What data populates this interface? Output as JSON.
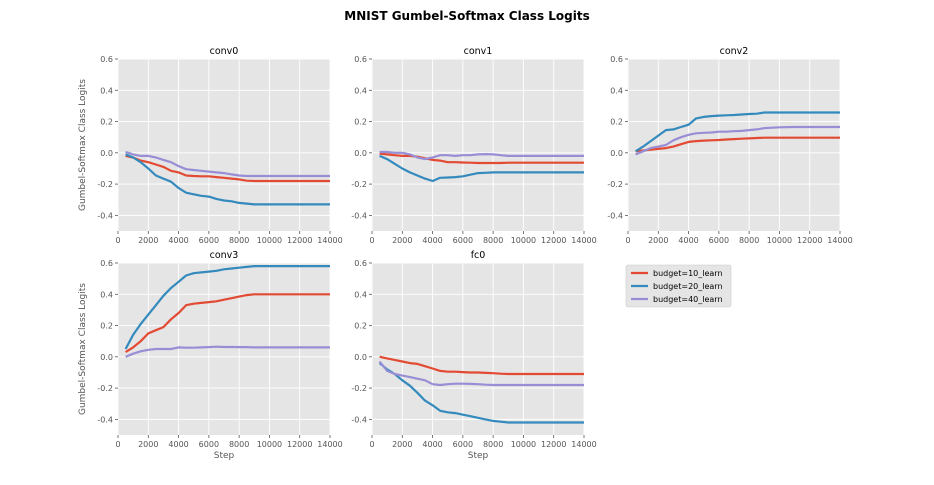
{
  "chart_data": {
    "type": "line",
    "title": "MNIST Gumbel-Softmax Class Logits",
    "xlabel": "Step",
    "ylabel": "Gumbel-Softmax Class Logits",
    "xlim": [
      0,
      14000
    ],
    "ylim": [
      -0.5,
      0.6
    ],
    "xticks": [
      "0",
      "2000",
      "4000",
      "6000",
      "8000",
      "10000",
      "12000",
      "14000"
    ],
    "yticks": [
      "-0.4",
      "-0.2",
      "0.0",
      "0.2",
      "0.4",
      "0.6"
    ],
    "legend": {
      "placement": "center-right",
      "entries": [
        "budget=10_learn",
        "budget=20_learn",
        "budget=40_learn"
      ]
    },
    "colors": [
      "#E24A33",
      "#348ABD",
      "#988ED5"
    ],
    "x": [
      500,
      1000,
      1500,
      2000,
      2500,
      3000,
      3500,
      4000,
      4500,
      5000,
      5500,
      6000,
      6500,
      7000,
      7500,
      8000,
      8500,
      9000,
      10000,
      11000,
      12000,
      13000,
      14000
    ],
    "panels": [
      {
        "name": "conv0",
        "series": [
          {
            "name": "budget=10_learn",
            "values": [
              -0.02,
              -0.03,
              -0.05,
              -0.06,
              -0.075,
              -0.09,
              -0.115,
              -0.125,
              -0.145,
              -0.148,
              -0.15,
              -0.15,
              -0.155,
              -0.16,
              -0.165,
              -0.17,
              -0.178,
              -0.18,
              -0.18,
              -0.18,
              -0.18,
              -0.18,
              -0.18
            ]
          },
          {
            "name": "budget=20_learn",
            "values": [
              -0.01,
              -0.03,
              -0.06,
              -0.1,
              -0.145,
              -0.165,
              -0.185,
              -0.225,
              -0.255,
              -0.265,
              -0.275,
              -0.28,
              -0.295,
              -0.305,
              -0.31,
              -0.32,
              -0.325,
              -0.33,
              -0.33,
              -0.33,
              -0.33,
              -0.33,
              -0.33
            ]
          },
          {
            "name": "budget=40_learn",
            "values": [
              0.005,
              -0.01,
              -0.02,
              -0.02,
              -0.03,
              -0.045,
              -0.06,
              -0.085,
              -0.105,
              -0.11,
              -0.115,
              -0.12,
              -0.125,
              -0.13,
              -0.138,
              -0.145,
              -0.148,
              -0.148,
              -0.148,
              -0.148,
              -0.148,
              -0.148,
              -0.148
            ]
          }
        ]
      },
      {
        "name": "conv1",
        "series": [
          {
            "name": "budget=10_learn",
            "values": [
              -0.005,
              -0.01,
              -0.015,
              -0.02,
              -0.02,
              -0.025,
              -0.035,
              -0.045,
              -0.05,
              -0.06,
              -0.06,
              -0.062,
              -0.063,
              -0.065,
              -0.065,
              -0.065,
              -0.065,
              -0.063,
              -0.063,
              -0.063,
              -0.063,
              -0.063,
              -0.063
            ]
          },
          {
            "name": "budget=20_learn",
            "values": [
              -0.02,
              -0.04,
              -0.07,
              -0.1,
              -0.125,
              -0.145,
              -0.165,
              -0.18,
              -0.16,
              -0.158,
              -0.155,
              -0.15,
              -0.14,
              -0.13,
              -0.128,
              -0.125,
              -0.125,
              -0.125,
              -0.125,
              -0.125,
              -0.125,
              -0.125,
              -0.125
            ]
          },
          {
            "name": "budget=40_learn",
            "values": [
              0.005,
              0.005,
              0.0,
              0.0,
              -0.01,
              -0.03,
              -0.04,
              -0.03,
              -0.015,
              -0.015,
              -0.02,
              -0.015,
              -0.015,
              -0.01,
              -0.008,
              -0.01,
              -0.015,
              -0.02,
              -0.02,
              -0.02,
              -0.02,
              -0.02,
              -0.02
            ]
          }
        ]
      },
      {
        "name": "conv2",
        "series": [
          {
            "name": "budget=10_learn",
            "values": [
              0.01,
              0.015,
              0.02,
              0.025,
              0.03,
              0.04,
              0.055,
              0.07,
              0.075,
              0.078,
              0.08,
              0.082,
              0.085,
              0.088,
              0.09,
              0.092,
              0.095,
              0.097,
              0.097,
              0.097,
              0.097,
              0.097,
              0.097
            ]
          },
          {
            "name": "budget=20_learn",
            "values": [
              0.01,
              0.04,
              0.075,
              0.11,
              0.145,
              0.15,
              0.165,
              0.18,
              0.22,
              0.23,
              0.235,
              0.238,
              0.24,
              0.242,
              0.245,
              0.248,
              0.25,
              0.258,
              0.258,
              0.258,
              0.258,
              0.258,
              0.258
            ]
          },
          {
            "name": "budget=40_learn",
            "values": [
              -0.01,
              0.01,
              0.03,
              0.04,
              0.05,
              0.08,
              0.1,
              0.115,
              0.125,
              0.128,
              0.13,
              0.135,
              0.135,
              0.138,
              0.14,
              0.145,
              0.15,
              0.158,
              0.163,
              0.165,
              0.165,
              0.165,
              0.165
            ]
          }
        ]
      },
      {
        "name": "conv3",
        "series": [
          {
            "name": "budget=10_learn",
            "values": [
              0.03,
              0.06,
              0.1,
              0.15,
              0.17,
              0.19,
              0.24,
              0.28,
              0.33,
              0.34,
              0.345,
              0.35,
              0.355,
              0.365,
              0.375,
              0.385,
              0.395,
              0.4,
              0.4,
              0.4,
              0.4,
              0.4,
              0.4
            ]
          },
          {
            "name": "budget=20_learn",
            "values": [
              0.05,
              0.14,
              0.21,
              0.27,
              0.33,
              0.39,
              0.44,
              0.48,
              0.52,
              0.535,
              0.54,
              0.545,
              0.55,
              0.56,
              0.565,
              0.57,
              0.575,
              0.58,
              0.58,
              0.58,
              0.58,
              0.58,
              0.58
            ]
          },
          {
            "name": "budget=40_learn",
            "values": [
              0.0,
              0.02,
              0.035,
              0.045,
              0.05,
              0.05,
              0.05,
              0.06,
              0.058,
              0.058,
              0.06,
              0.062,
              0.065,
              0.063,
              0.063,
              0.062,
              0.062,
              0.06,
              0.06,
              0.06,
              0.06,
              0.06,
              0.06
            ]
          }
        ]
      },
      {
        "name": "fc0",
        "series": [
          {
            "name": "budget=10_learn",
            "values": [
              0.0,
              -0.01,
              -0.02,
              -0.03,
              -0.04,
              -0.045,
              -0.06,
              -0.075,
              -0.09,
              -0.095,
              -0.095,
              -0.098,
              -0.1,
              -0.1,
              -0.103,
              -0.105,
              -0.108,
              -0.11,
              -0.11,
              -0.11,
              -0.11,
              -0.11,
              -0.11
            ]
          },
          {
            "name": "budget=20_learn",
            "values": [
              -0.04,
              -0.08,
              -0.11,
              -0.15,
              -0.185,
              -0.23,
              -0.28,
              -0.31,
              -0.345,
              -0.355,
              -0.36,
              -0.37,
              -0.38,
              -0.39,
              -0.4,
              -0.41,
              -0.415,
              -0.42,
              -0.42,
              -0.42,
              -0.42,
              -0.42,
              -0.42
            ]
          },
          {
            "name": "budget=40_learn",
            "values": [
              -0.03,
              -0.09,
              -0.11,
              -0.12,
              -0.13,
              -0.14,
              -0.15,
              -0.175,
              -0.18,
              -0.175,
              -0.172,
              -0.172,
              -0.173,
              -0.175,
              -0.178,
              -0.18,
              -0.18,
              -0.18,
              -0.18,
              -0.18,
              -0.18,
              -0.18,
              -0.18
            ]
          }
        ]
      }
    ]
  }
}
